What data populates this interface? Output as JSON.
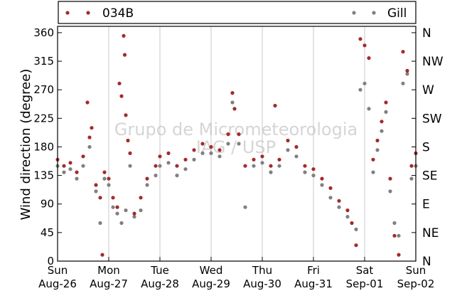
{
  "chart_data": {
    "type": "scatter",
    "title": "",
    "ylabel": "Wind direction (degree)",
    "ylim": [
      0,
      370
    ],
    "yticks": [
      0,
      45,
      90,
      135,
      180,
      225,
      270,
      315,
      360
    ],
    "y2_labels": [
      {
        "value": 0,
        "label": "N"
      },
      {
        "value": 45,
        "label": "NE"
      },
      {
        "value": 90,
        "label": "E"
      },
      {
        "value": 135,
        "label": "SE"
      },
      {
        "value": 180,
        "label": "S"
      },
      {
        "value": 225,
        "label": "SW"
      },
      {
        "value": 270,
        "label": "W"
      },
      {
        "value": 315,
        "label": "NW"
      },
      {
        "value": 360,
        "label": "N"
      }
    ],
    "xlim": [
      "Aug-26 00:00",
      "Sep-02 00:00"
    ],
    "xticks": [
      {
        "day": "Sun",
        "date": "Aug-26"
      },
      {
        "day": "Mon",
        "date": "Aug-27"
      },
      {
        "day": "Tue",
        "date": "Aug-28"
      },
      {
        "day": "Wed",
        "date": "Aug-29"
      },
      {
        "day": "Thu",
        "date": "Aug-30"
      },
      {
        "day": "Fri",
        "date": "Aug-31"
      },
      {
        "day": "Sat",
        "date": "Sep-01"
      },
      {
        "day": "Sun",
        "date": "Sep-02"
      }
    ],
    "grid": "vertical",
    "legend_placement": "top",
    "series": [
      {
        "name": "034B",
        "color": "#a52a2a",
        "marker": "dot",
        "points": [
          [
            "Aug-26 00:00",
            160
          ],
          [
            "Aug-26 03:00",
            150
          ],
          [
            "Aug-26 06:00",
            155
          ],
          [
            "Aug-26 09:00",
            140
          ],
          [
            "Aug-26 12:00",
            165
          ],
          [
            "Aug-26 14:00",
            250
          ],
          [
            "Aug-26 15:00",
            195
          ],
          [
            "Aug-26 16:00",
            210
          ],
          [
            "Aug-26 18:00",
            120
          ],
          [
            "Aug-26 20:00",
            100
          ],
          [
            "Aug-26 21:00",
            10
          ],
          [
            "Aug-26 22:00",
            140
          ],
          [
            "Aug-27 00:00",
            130
          ],
          [
            "Aug-27 02:00",
            100
          ],
          [
            "Aug-27 04:00",
            85
          ],
          [
            "Aug-27 05:00",
            280
          ],
          [
            "Aug-27 06:00",
            260
          ],
          [
            "Aug-27 07:00",
            355
          ],
          [
            "Aug-27 07:30",
            325
          ],
          [
            "Aug-27 08:00",
            230
          ],
          [
            "Aug-27 09:00",
            190
          ],
          [
            "Aug-27 10:00",
            170
          ],
          [
            "Aug-27 12:00",
            75
          ],
          [
            "Aug-27 15:00",
            100
          ],
          [
            "Aug-27 18:00",
            130
          ],
          [
            "Aug-27 22:00",
            150
          ],
          [
            "Aug-28 00:00",
            165
          ],
          [
            "Aug-28 04:00",
            170
          ],
          [
            "Aug-28 08:00",
            150
          ],
          [
            "Aug-28 12:00",
            160
          ],
          [
            "Aug-28 16:00",
            175
          ],
          [
            "Aug-28 20:00",
            185
          ],
          [
            "Aug-29 00:00",
            180
          ],
          [
            "Aug-29 04:00",
            175
          ],
          [
            "Aug-29 08:00",
            200
          ],
          [
            "Aug-29 10:00",
            265
          ],
          [
            "Aug-29 11:00",
            240
          ],
          [
            "Aug-29 13:00",
            200
          ],
          [
            "Aug-29 16:00",
            150
          ],
          [
            "Aug-29 20:00",
            160
          ],
          [
            "Aug-30 00:00",
            165
          ],
          [
            "Aug-30 04:00",
            150
          ],
          [
            "Aug-30 06:00",
            245
          ],
          [
            "Aug-30 08:00",
            160
          ],
          [
            "Aug-30 12:00",
            190
          ],
          [
            "Aug-30 16:00",
            180
          ],
          [
            "Aug-30 20:00",
            150
          ],
          [
            "Aug-31 00:00",
            145
          ],
          [
            "Aug-31 04:00",
            130
          ],
          [
            "Aug-31 08:00",
            115
          ],
          [
            "Aug-31 12:00",
            95
          ],
          [
            "Aug-31 16:00",
            80
          ],
          [
            "Aug-31 18:00",
            60
          ],
          [
            "Aug-31 20:00",
            25
          ],
          [
            "Aug-31 22:00",
            350
          ],
          [
            "Sep-01 00:00",
            340
          ],
          [
            "Sep-01 02:00",
            320
          ],
          [
            "Sep-01 04:00",
            160
          ],
          [
            "Sep-01 06:00",
            190
          ],
          [
            "Sep-01 08:00",
            220
          ],
          [
            "Sep-01 10:00",
            250
          ],
          [
            "Sep-01 12:00",
            130
          ],
          [
            "Sep-01 14:00",
            40
          ],
          [
            "Sep-01 16:00",
            10
          ],
          [
            "Sep-01 18:00",
            330
          ],
          [
            "Sep-01 20:00",
            300
          ],
          [
            "Sep-01 22:00",
            150
          ],
          [
            "Sep-02 00:00",
            170
          ]
        ]
      },
      {
        "name": "Gill",
        "color": "#808080",
        "marker": "dot",
        "points": [
          [
            "Aug-26 00:00",
            150
          ],
          [
            "Aug-26 03:00",
            140
          ],
          [
            "Aug-26 06:00",
            145
          ],
          [
            "Aug-26 09:00",
            130
          ],
          [
            "Aug-26 12:00",
            150
          ],
          [
            "Aug-26 15:00",
            180
          ],
          [
            "Aug-26 18:00",
            110
          ],
          [
            "Aug-26 20:00",
            60
          ],
          [
            "Aug-26 22:00",
            130
          ],
          [
            "Aug-27 00:00",
            120
          ],
          [
            "Aug-27 02:00",
            85
          ],
          [
            "Aug-27 04:00",
            75
          ],
          [
            "Aug-27 06:00",
            60
          ],
          [
            "Aug-27 08:00",
            80
          ],
          [
            "Aug-27 10:00",
            150
          ],
          [
            "Aug-27 12:00",
            70
          ],
          [
            "Aug-27 15:00",
            80
          ],
          [
            "Aug-27 18:00",
            120
          ],
          [
            "Aug-27 22:00",
            135
          ],
          [
            "Aug-28 00:00",
            150
          ],
          [
            "Aug-28 04:00",
            155
          ],
          [
            "Aug-28 08:00",
            135
          ],
          [
            "Aug-28 12:00",
            145
          ],
          [
            "Aug-28 16:00",
            160
          ],
          [
            "Aug-28 20:00",
            170
          ],
          [
            "Aug-29 00:00",
            170
          ],
          [
            "Aug-29 04:00",
            165
          ],
          [
            "Aug-29 08:00",
            185
          ],
          [
            "Aug-29 10:00",
            250
          ],
          [
            "Aug-29 13:00",
            185
          ],
          [
            "Aug-29 16:00",
            85
          ],
          [
            "Aug-29 20:00",
            150
          ],
          [
            "Aug-30 00:00",
            155
          ],
          [
            "Aug-30 04:00",
            140
          ],
          [
            "Aug-30 08:00",
            150
          ],
          [
            "Aug-30 12:00",
            175
          ],
          [
            "Aug-30 16:00",
            165
          ],
          [
            "Aug-30 20:00",
            140
          ],
          [
            "Aug-31 00:00",
            135
          ],
          [
            "Aug-31 04:00",
            120
          ],
          [
            "Aug-31 08:00",
            100
          ],
          [
            "Aug-31 12:00",
            85
          ],
          [
            "Aug-31 16:00",
            70
          ],
          [
            "Aug-31 20:00",
            50
          ],
          [
            "Aug-31 22:00",
            270
          ],
          [
            "Sep-01 00:00",
            280
          ],
          [
            "Sep-01 02:00",
            240
          ],
          [
            "Sep-01 04:00",
            140
          ],
          [
            "Sep-01 06:00",
            175
          ],
          [
            "Sep-01 08:00",
            205
          ],
          [
            "Sep-01 10:00",
            235
          ],
          [
            "Sep-01 12:00",
            110
          ],
          [
            "Sep-01 14:00",
            60
          ],
          [
            "Sep-01 16:00",
            40
          ],
          [
            "Sep-01 18:00",
            280
          ],
          [
            "Sep-01 20:00",
            295
          ],
          [
            "Sep-01 22:00",
            130
          ],
          [
            "Sep-02 00:00",
            150
          ]
        ]
      }
    ],
    "watermark": [
      "Grupo de Micrometeorologia",
      "IAG / USP"
    ]
  }
}
